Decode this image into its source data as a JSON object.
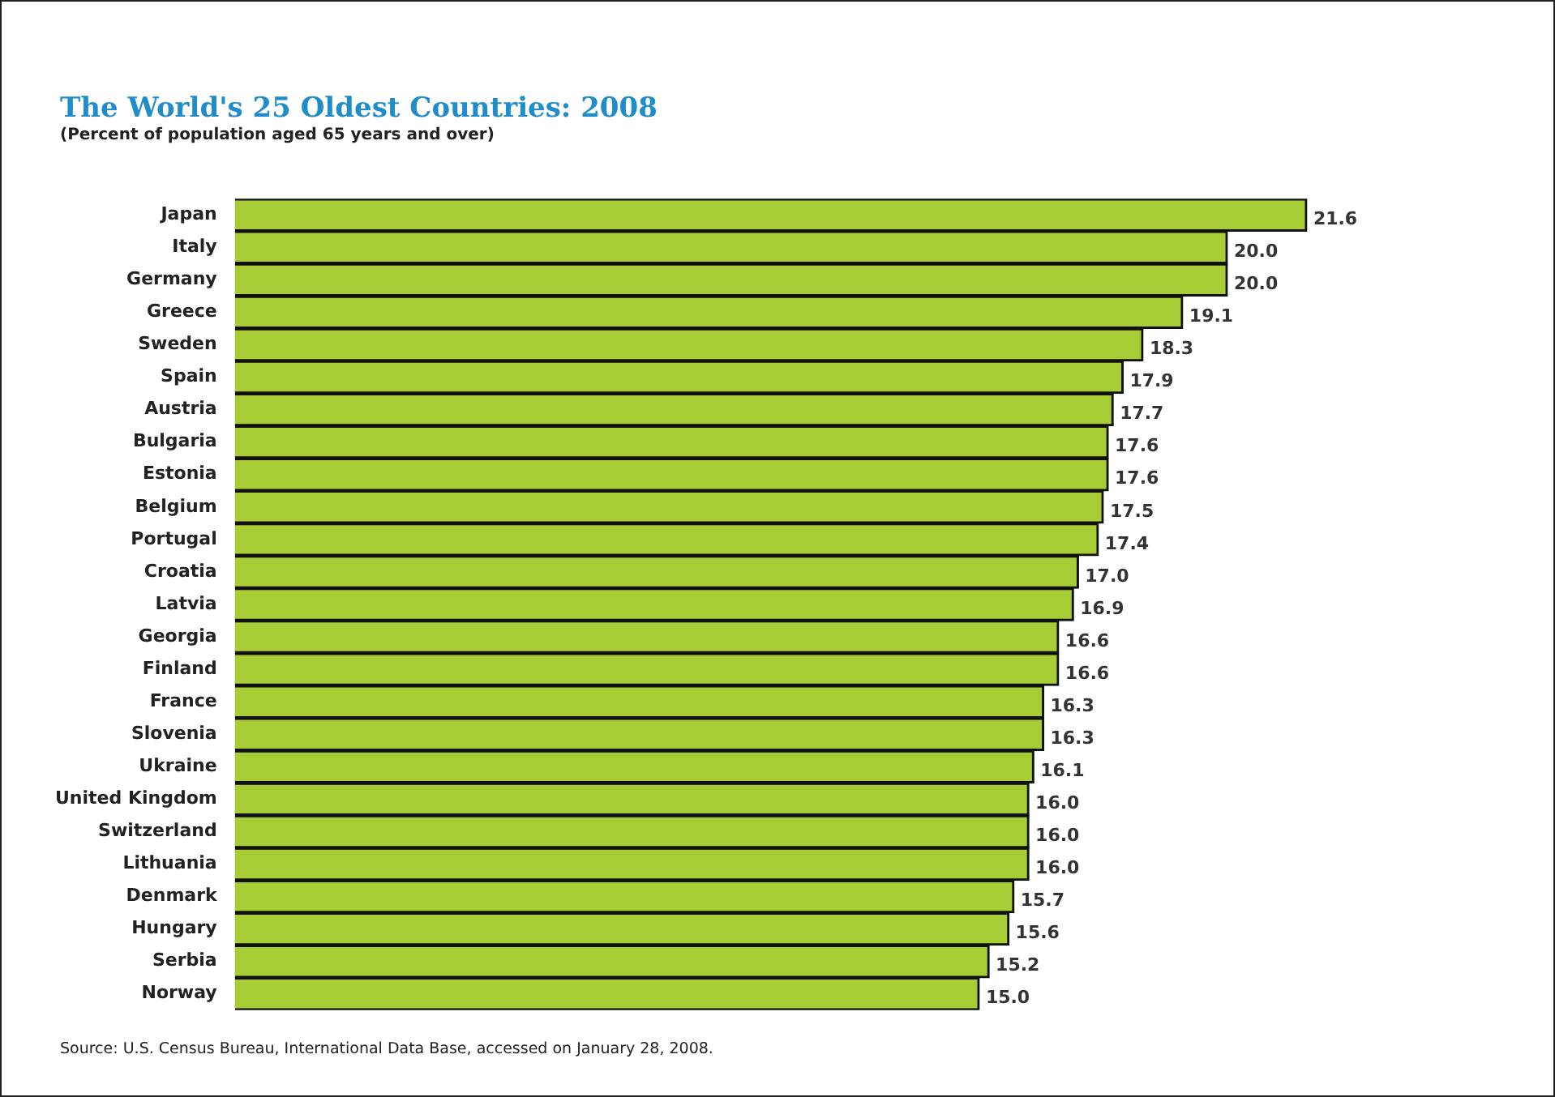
{
  "chart_data": {
    "type": "bar",
    "orientation": "horizontal",
    "title": "The World's 25 Oldest Countries: 2008",
    "subtitle": "(Percent of population aged 65 years and over)",
    "categories": [
      "Japan",
      "Italy",
      "Germany",
      "Greece",
      "Sweden",
      "Spain",
      "Austria",
      "Bulgaria",
      "Estonia",
      "Belgium",
      "Portugal",
      "Croatia",
      "Latvia",
      "Georgia",
      "Finland",
      "France",
      "Slovenia",
      "Ukraine",
      "United Kingdom",
      "Switzerland",
      "Lithuania",
      "Denmark",
      "Hungary",
      "Serbia",
      "Norway"
    ],
    "values": [
      21.6,
      20.0,
      20.0,
      19.1,
      18.3,
      17.9,
      17.7,
      17.6,
      17.6,
      17.5,
      17.4,
      17.0,
      16.9,
      16.6,
      16.6,
      16.3,
      16.3,
      16.1,
      16.0,
      16.0,
      16.0,
      15.7,
      15.6,
      15.2,
      15.0
    ],
    "value_labels": [
      "21.6",
      "20.0",
      "20.0",
      "19.1",
      "18.3",
      "17.9",
      "17.7",
      "17.6",
      "17.6",
      "17.5",
      "17.4",
      "17.0",
      "16.9",
      "16.6",
      "16.6",
      "16.3",
      "16.3",
      "16.1",
      "16.0",
      "16.0",
      "16.0",
      "15.7",
      "15.6",
      "15.2",
      "15.0"
    ],
    "color": "#a8cc35",
    "tick_labels": "y",
    "annotations": [
      "Source: U.S. Census Bureau, International Data Base, accessed on January 28, 2008."
    ]
  }
}
